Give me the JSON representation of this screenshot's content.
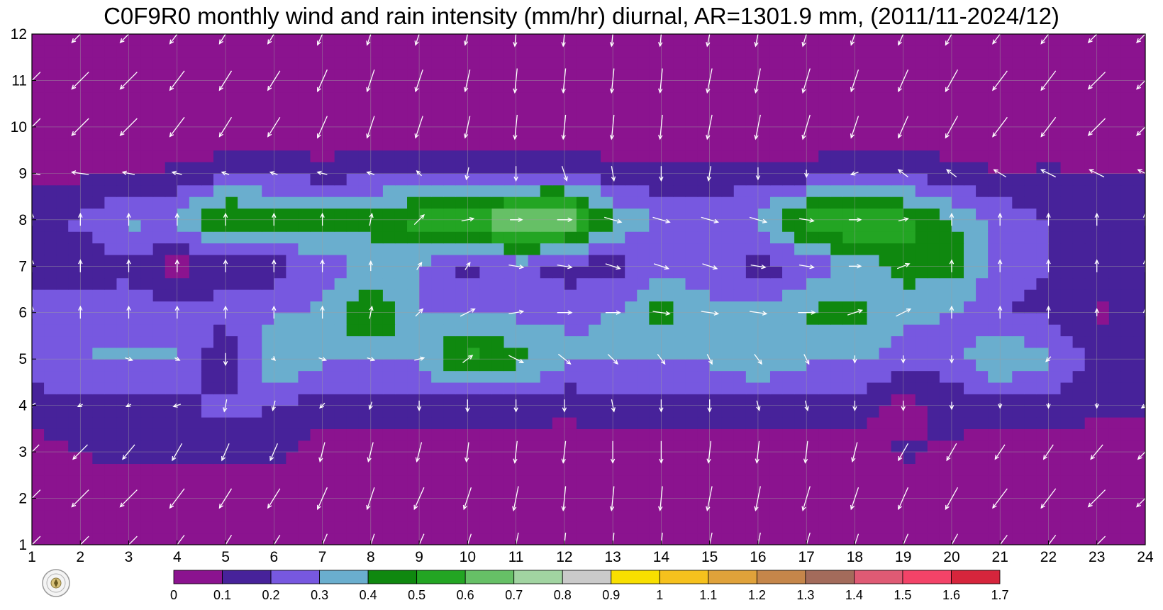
{
  "chart_data": {
    "type": "heatmap",
    "title": "C0F9R0 monthly wind and rain intensity (mm/hr) diurnal, AR=1301.9 mm, (2011/11-2024/12)",
    "xlabel": "",
    "ylabel": "",
    "x": [
      1,
      2,
      3,
      4,
      5,
      6,
      7,
      8,
      9,
      10,
      11,
      12,
      13,
      14,
      15,
      16,
      17,
      18,
      19,
      20,
      21,
      22,
      23,
      24
    ],
    "y": [
      1,
      2,
      3,
      4,
      5,
      6,
      7,
      8,
      9,
      10,
      11,
      12
    ],
    "xlim": [
      1,
      24
    ],
    "ylim": [
      1,
      12
    ],
    "x_tick_labels": [
      "1",
      "2",
      "3",
      "4",
      "5",
      "6",
      "7",
      "8",
      "9",
      "10",
      "11",
      "12",
      "13",
      "14",
      "15",
      "16",
      "17",
      "18",
      "19",
      "20",
      "21",
      "22",
      "23",
      "24"
    ],
    "y_tick_labels": [
      "1",
      "2",
      "3",
      "4",
      "5",
      "6",
      "7",
      "8",
      "9",
      "10",
      "11",
      "12"
    ],
    "grid": true,
    "z": [
      [
        0.0,
        0.0,
        0.0,
        0.0,
        0.0,
        0.0,
        0.0,
        0.0,
        0.0,
        0.0,
        0.0,
        0.0,
        0.0,
        0.0,
        0.0,
        0.0,
        0.0,
        0.0,
        0.0,
        0.0,
        0.0,
        0.0,
        0.0,
        0.0
      ],
      [
        0.0,
        0.0,
        0.0,
        0.0,
        0.0,
        0.0,
        0.0,
        0.0,
        0.0,
        0.0,
        0.0,
        0.0,
        0.0,
        0.0,
        0.0,
        0.0,
        0.0,
        0.0,
        0.0,
        0.0,
        0.0,
        0.0,
        0.0,
        0.0
      ],
      [
        0.05,
        0.1,
        0.15,
        0.15,
        0.12,
        0.15,
        0.05,
        0.05,
        0.05,
        0.05,
        0.05,
        0.05,
        0.05,
        0.05,
        0.05,
        0.05,
        0.05,
        0.05,
        0.12,
        0.08,
        0.05,
        0.05,
        0.05,
        0.05
      ],
      [
        0.15,
        0.18,
        0.15,
        0.15,
        0.25,
        0.2,
        0.15,
        0.15,
        0.15,
        0.15,
        0.15,
        0.12,
        0.15,
        0.15,
        0.15,
        0.15,
        0.15,
        0.15,
        0.05,
        0.15,
        0.15,
        0.15,
        0.12,
        0.12
      ],
      [
        0.25,
        0.3,
        0.32,
        0.32,
        0.08,
        0.42,
        0.32,
        0.32,
        0.3,
        0.55,
        0.45,
        0.32,
        0.32,
        0.32,
        0.32,
        0.42,
        0.32,
        0.32,
        0.25,
        0.25,
        0.42,
        0.32,
        0.18,
        0.15
      ],
      [
        0.25,
        0.25,
        0.25,
        0.25,
        0.25,
        0.28,
        0.32,
        0.55,
        0.3,
        0.32,
        0.28,
        0.28,
        0.3,
        0.45,
        0.32,
        0.32,
        0.42,
        0.45,
        0.32,
        0.3,
        0.2,
        0.18,
        0.08,
        0.12
      ],
      [
        0.15,
        0.12,
        0.18,
        0.05,
        0.15,
        0.15,
        0.25,
        0.3,
        0.3,
        0.15,
        0.25,
        0.15,
        0.15,
        0.25,
        0.25,
        0.15,
        0.22,
        0.32,
        0.45,
        0.45,
        0.25,
        0.2,
        0.15,
        0.15
      ],
      [
        0.15,
        0.22,
        0.32,
        0.32,
        0.55,
        0.45,
        0.45,
        0.45,
        0.55,
        0.55,
        0.75,
        0.75,
        0.4,
        0.28,
        0.25,
        0.32,
        0.55,
        0.65,
        0.55,
        0.4,
        0.28,
        0.2,
        0.2,
        0.2
      ],
      [
        0.08,
        0.08,
        0.1,
        0.12,
        0.18,
        0.2,
        0.15,
        0.18,
        0.2,
        0.18,
        0.18,
        0.2,
        0.15,
        0.12,
        0.15,
        0.15,
        0.15,
        0.2,
        0.18,
        0.15,
        0.1,
        0.12,
        0.1,
        0.1
      ],
      [
        0.0,
        0.0,
        0.0,
        0.0,
        0.0,
        0.0,
        0.0,
        0.0,
        0.0,
        0.0,
        0.0,
        0.0,
        0.0,
        0.0,
        0.0,
        0.0,
        0.0,
        0.0,
        0.0,
        0.0,
        0.0,
        0.0,
        0.0,
        0.0
      ],
      [
        0.0,
        0.0,
        0.0,
        0.0,
        0.0,
        0.0,
        0.0,
        0.0,
        0.0,
        0.0,
        0.0,
        0.0,
        0.0,
        0.0,
        0.0,
        0.0,
        0.0,
        0.0,
        0.0,
        0.0,
        0.0,
        0.0,
        0.0,
        0.0
      ],
      [
        0.0,
        0.0,
        0.0,
        0.0,
        0.0,
        0.0,
        0.0,
        0.0,
        0.0,
        0.0,
        0.0,
        0.0,
        0.0,
        0.0,
        0.0,
        0.0,
        0.0,
        0.0,
        0.0,
        0.0,
        0.0,
        0.0,
        0.0,
        0.0
      ]
    ],
    "wind_u": [
      [
        -0.7,
        -0.7,
        -0.7,
        -0.6,
        -0.5,
        -0.5,
        -0.4,
        -0.3,
        -0.4,
        -0.3,
        -0.2,
        -0.1,
        -0.1,
        -0.1,
        -0.2,
        -0.2,
        -0.3,
        -0.3,
        -0.4,
        -0.5,
        -0.6,
        -0.6,
        -0.7,
        -0.7
      ],
      [
        -0.7,
        -0.7,
        -0.7,
        -0.6,
        -0.5,
        -0.5,
        -0.4,
        -0.3,
        -0.4,
        -0.3,
        -0.2,
        -0.1,
        -0.1,
        -0.1,
        -0.2,
        -0.2,
        -0.3,
        -0.3,
        -0.4,
        -0.5,
        -0.6,
        -0.6,
        -0.7,
        -0.7
      ],
      [
        -0.6,
        -0.6,
        -0.5,
        -0.4,
        -0.3,
        -0.3,
        -0.2,
        -0.2,
        -0.2,
        -0.1,
        -0.1,
        -0.1,
        0.0,
        0.0,
        -0.1,
        -0.1,
        -0.1,
        -0.2,
        -0.4,
        -0.4,
        -0.4,
        -0.4,
        -0.5,
        -0.6
      ],
      [
        -0.3,
        -0.2,
        -0.2,
        -0.3,
        -0.1,
        -0.1,
        -0.2,
        -0.1,
        0.0,
        0.0,
        0.0,
        0.0,
        0.1,
        0.0,
        0.0,
        0.1,
        0.1,
        0.0,
        0.0,
        0.0,
        0.0,
        0.0,
        0.0,
        -0.3
      ],
      [
        0.0,
        0.0,
        0.3,
        0.2,
        0.0,
        0.1,
        0.3,
        0.3,
        0.4,
        0.4,
        0.6,
        0.5,
        0.4,
        0.3,
        0.2,
        0.3,
        0.2,
        0.0,
        0.0,
        0.0,
        0.0,
        -0.2,
        0.0,
        0.0
      ],
      [
        0.0,
        0.0,
        0.0,
        0.0,
        0.0,
        0.0,
        0.0,
        0.1,
        0.3,
        0.6,
        0.6,
        0.6,
        0.6,
        0.7,
        0.7,
        0.7,
        0.7,
        0.6,
        0.6,
        0.0,
        0.0,
        0.0,
        0.0,
        0.0
      ],
      [
        0.0,
        0.0,
        0.0,
        0.0,
        0.0,
        0.0,
        0.0,
        0.0,
        0.2,
        0.2,
        0.6,
        0.6,
        0.6,
        0.6,
        0.6,
        0.6,
        0.6,
        0.5,
        0.5,
        0.0,
        0.0,
        0.0,
        0.0,
        0.0
      ],
      [
        0.0,
        0.0,
        0.0,
        0.0,
        0.0,
        0.0,
        0.0,
        0.1,
        0.4,
        0.5,
        0.5,
        0.6,
        0.7,
        0.7,
        0.7,
        0.7,
        0.6,
        0.5,
        0.4,
        0.0,
        0.0,
        0.0,
        0.0,
        0.0
      ],
      [
        -0.7,
        -0.7,
        -0.5,
        -0.4,
        -0.3,
        -0.3,
        -0.4,
        -0.3,
        -0.2,
        -0.1,
        0.0,
        0.2,
        0.1,
        0.0,
        -0.1,
        0.0,
        0.0,
        -0.3,
        -0.4,
        -0.4,
        -0.5,
        -0.6,
        -0.6,
        -0.6
      ],
      [
        -0.7,
        -0.7,
        -0.7,
        -0.6,
        -0.5,
        -0.5,
        -0.4,
        -0.3,
        -0.3,
        -0.2,
        -0.1,
        -0.1,
        -0.1,
        -0.1,
        -0.2,
        -0.2,
        -0.3,
        -0.3,
        -0.4,
        -0.5,
        -0.6,
        -0.6,
        -0.7,
        -0.7
      ],
      [
        -0.7,
        -0.7,
        -0.7,
        -0.6,
        -0.5,
        -0.5,
        -0.4,
        -0.3,
        -0.3,
        -0.2,
        -0.1,
        -0.1,
        -0.1,
        -0.1,
        -0.2,
        -0.2,
        -0.3,
        -0.3,
        -0.4,
        -0.5,
        -0.6,
        -0.6,
        -0.7,
        -0.7
      ],
      [
        -0.7,
        -0.7,
        -0.7,
        -0.6,
        -0.5,
        -0.5,
        -0.4,
        -0.3,
        -0.3,
        -0.2,
        -0.1,
        -0.1,
        -0.1,
        -0.1,
        -0.2,
        -0.2,
        -0.3,
        -0.3,
        -0.4,
        -0.5,
        -0.6,
        -0.6,
        -0.7,
        -0.7
      ]
    ],
    "wind_v": [
      [
        -0.7,
        -0.7,
        -0.7,
        -0.8,
        -0.8,
        -0.8,
        -0.9,
        -0.9,
        -0.9,
        -0.9,
        -1.0,
        -1.0,
        -1.0,
        -1.0,
        -1.0,
        -1.0,
        -1.0,
        -0.9,
        -0.9,
        -0.9,
        -0.8,
        -0.8,
        -0.7,
        -0.7
      ],
      [
        -0.7,
        -0.7,
        -0.7,
        -0.8,
        -0.8,
        -0.8,
        -0.9,
        -0.9,
        -0.9,
        -0.9,
        -1.0,
        -1.0,
        -1.0,
        -1.0,
        -1.0,
        -1.0,
        -1.0,
        -0.9,
        -0.9,
        -0.9,
        -0.8,
        -0.8,
        -0.7,
        -0.7
      ],
      [
        -0.6,
        -0.6,
        -0.6,
        -0.7,
        -0.7,
        -0.7,
        -0.8,
        -0.8,
        -0.8,
        -0.8,
        -0.9,
        -0.9,
        -0.9,
        -0.9,
        -0.9,
        -0.9,
        -0.9,
        -0.8,
        -0.7,
        -0.7,
        -0.6,
        -0.6,
        -0.6,
        -0.6
      ],
      [
        -0.2,
        -0.1,
        -0.1,
        -0.1,
        -0.5,
        -0.4,
        -0.2,
        -0.3,
        -0.4,
        -0.5,
        -0.5,
        -0.5,
        -0.5,
        -0.5,
        -0.5,
        -0.4,
        -0.4,
        -0.4,
        -0.4,
        -0.3,
        -0.2,
        -0.2,
        -0.2,
        -0.2
      ],
      [
        0.0,
        0.0,
        -0.1,
        -0.1,
        -0.5,
        -0.1,
        -0.1,
        -0.1,
        0.1,
        0.3,
        -0.3,
        -0.4,
        -0.4,
        -0.4,
        -0.4,
        -0.4,
        -0.4,
        -0.3,
        -0.3,
        -0.3,
        0.0,
        -0.2,
        0.0,
        0.0
      ],
      [
        0.5,
        0.5,
        0.5,
        0.5,
        0.5,
        0.5,
        0.5,
        0.5,
        0.3,
        0.3,
        0.1,
        0.0,
        0.0,
        -0.1,
        -0.1,
        -0.1,
        0.0,
        0.2,
        0.3,
        0.5,
        0.5,
        0.5,
        0.3,
        0.3
      ],
      [
        0.5,
        0.5,
        0.5,
        0.5,
        0.5,
        0.5,
        0.5,
        0.4,
        0.3,
        0.3,
        -0.1,
        -0.1,
        -0.2,
        -0.2,
        -0.2,
        -0.1,
        -0.1,
        0.0,
        0.2,
        0.5,
        0.5,
        0.5,
        0.5,
        0.5
      ],
      [
        0.5,
        0.5,
        0.5,
        0.5,
        0.5,
        0.5,
        0.5,
        0.5,
        0.4,
        0.1,
        0.0,
        0.0,
        -0.2,
        -0.2,
        -0.2,
        -0.2,
        -0.1,
        0.0,
        0.1,
        0.5,
        0.5,
        0.5,
        0.5,
        0.5
      ],
      [
        0.1,
        0.1,
        0.1,
        0.1,
        0.1,
        0.1,
        0.1,
        0.1,
        0.2,
        -0.5,
        -0.6,
        -0.6,
        -0.6,
        -0.6,
        -0.6,
        -0.5,
        -0.3,
        -0.1,
        0.3,
        0.3,
        0.3,
        0.3,
        0.3,
        0.3
      ],
      [
        -0.7,
        -0.7,
        -0.7,
        -0.8,
        -0.8,
        -0.8,
        -0.9,
        -0.9,
        -0.9,
        -0.9,
        -1.0,
        -1.0,
        -1.0,
        -1.0,
        -1.0,
        -1.0,
        -1.0,
        -0.9,
        -0.9,
        -0.9,
        -0.8,
        -0.8,
        -0.7,
        -0.7
      ],
      [
        -0.7,
        -0.7,
        -0.7,
        -0.8,
        -0.8,
        -0.8,
        -0.9,
        -0.9,
        -0.9,
        -0.9,
        -1.0,
        -1.0,
        -1.0,
        -1.0,
        -1.0,
        -1.0,
        -1.0,
        -0.9,
        -0.9,
        -0.9,
        -0.8,
        -0.8,
        -0.7,
        -0.7
      ],
      [
        -0.7,
        -0.7,
        -0.7,
        -0.8,
        -0.8,
        -0.8,
        -0.9,
        -0.9,
        -0.9,
        -0.9,
        -1.0,
        -1.0,
        -1.0,
        -1.0,
        -1.0,
        -1.0,
        -1.0,
        -0.9,
        -0.9,
        -0.9,
        -0.8,
        -0.8,
        -0.7,
        -0.7
      ]
    ],
    "contour_levels": [
      0,
      0.1,
      0.2,
      0.3,
      0.4,
      0.5,
      0.6,
      0.7,
      0.8,
      0.9,
      1,
      1.1,
      1.2,
      1.3,
      1.4,
      1.5,
      1.6,
      1.7
    ],
    "colorbar": {
      "tick_labels": [
        "0",
        "0.1",
        "0.2",
        "0.3",
        "0.4",
        "0.5",
        "0.6",
        "0.7",
        "0.8",
        "0.9",
        "1",
        "1.1",
        "1.2",
        "1.3",
        "1.4",
        "1.5",
        "1.6",
        "1.7"
      ],
      "colors": [
        "#8b138f",
        "#47229a",
        "#7758e0",
        "#6aaece",
        "#0f880f",
        "#23a523",
        "#66c066",
        "#a1d4a1",
        "#cacaca",
        "#f8df00",
        "#f6c11d",
        "#e0a23a",
        "#c5864a",
        "#a36b5b",
        "#df5a74",
        "#f34368",
        "#d6253c"
      ]
    },
    "contour_line_color": "#f4a823",
    "wind_arrow_color": "#ffffff",
    "grid_color": "#a0a0a0"
  }
}
